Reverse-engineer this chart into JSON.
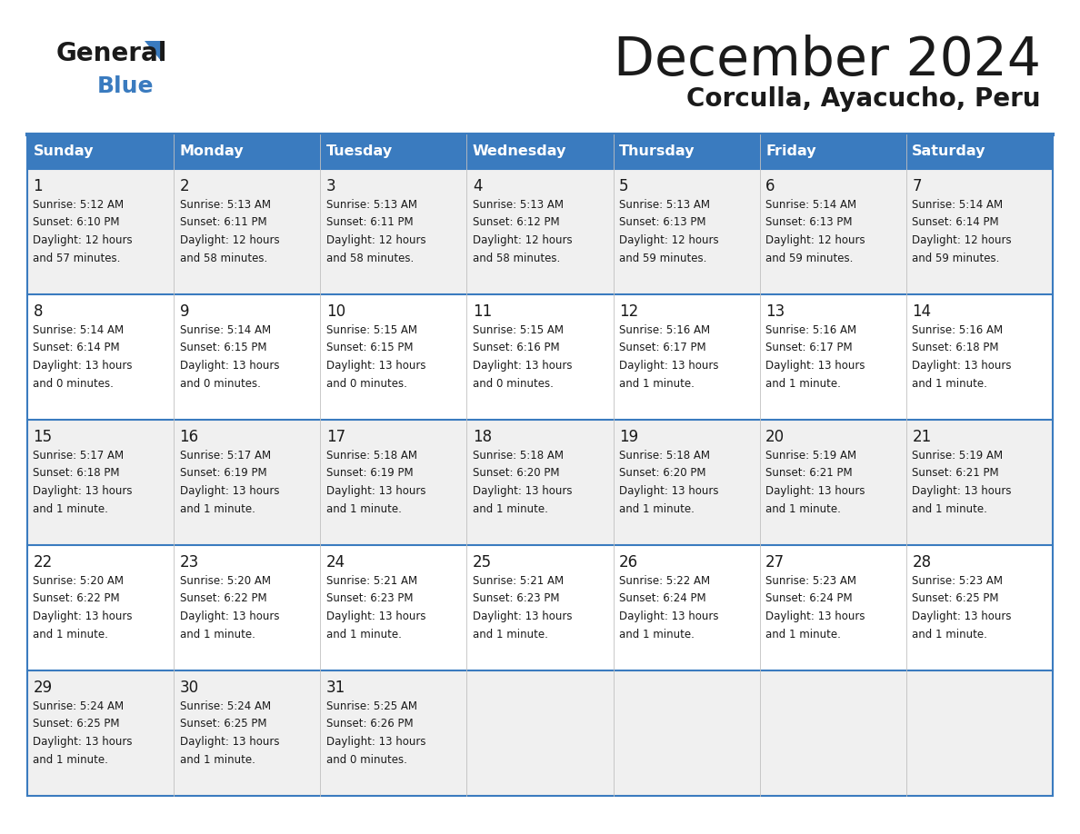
{
  "title": "December 2024",
  "subtitle": "Corculla, Ayacucho, Peru",
  "header_color": "#3a7bbf",
  "header_text_color": "#ffffff",
  "border_color": "#3a7bbf",
  "row_bg_even": "#f0f0f0",
  "row_bg_odd": "#ffffff",
  "text_color": "#1a1a1a",
  "logo_text_color": "#1a1a1a",
  "logo_blue_color": "#3a7bbf",
  "day_names": [
    "Sunday",
    "Monday",
    "Tuesday",
    "Wednesday",
    "Thursday",
    "Friday",
    "Saturday"
  ],
  "days": [
    {
      "day": 1,
      "col": 0,
      "row": 0,
      "sunrise": "5:12 AM",
      "sunset": "6:10 PM",
      "daylight_line1": "Daylight: 12 hours",
      "daylight_line2": "and 57 minutes."
    },
    {
      "day": 2,
      "col": 1,
      "row": 0,
      "sunrise": "5:13 AM",
      "sunset": "6:11 PM",
      "daylight_line1": "Daylight: 12 hours",
      "daylight_line2": "and 58 minutes."
    },
    {
      "day": 3,
      "col": 2,
      "row": 0,
      "sunrise": "5:13 AM",
      "sunset": "6:11 PM",
      "daylight_line1": "Daylight: 12 hours",
      "daylight_line2": "and 58 minutes."
    },
    {
      "day": 4,
      "col": 3,
      "row": 0,
      "sunrise": "5:13 AM",
      "sunset": "6:12 PM",
      "daylight_line1": "Daylight: 12 hours",
      "daylight_line2": "and 58 minutes."
    },
    {
      "day": 5,
      "col": 4,
      "row": 0,
      "sunrise": "5:13 AM",
      "sunset": "6:13 PM",
      "daylight_line1": "Daylight: 12 hours",
      "daylight_line2": "and 59 minutes."
    },
    {
      "day": 6,
      "col": 5,
      "row": 0,
      "sunrise": "5:14 AM",
      "sunset": "6:13 PM",
      "daylight_line1": "Daylight: 12 hours",
      "daylight_line2": "and 59 minutes."
    },
    {
      "day": 7,
      "col": 6,
      "row": 0,
      "sunrise": "5:14 AM",
      "sunset": "6:14 PM",
      "daylight_line1": "Daylight: 12 hours",
      "daylight_line2": "and 59 minutes."
    },
    {
      "day": 8,
      "col": 0,
      "row": 1,
      "sunrise": "5:14 AM",
      "sunset": "6:14 PM",
      "daylight_line1": "Daylight: 13 hours",
      "daylight_line2": "and 0 minutes."
    },
    {
      "day": 9,
      "col": 1,
      "row": 1,
      "sunrise": "5:14 AM",
      "sunset": "6:15 PM",
      "daylight_line1": "Daylight: 13 hours",
      "daylight_line2": "and 0 minutes."
    },
    {
      "day": 10,
      "col": 2,
      "row": 1,
      "sunrise": "5:15 AM",
      "sunset": "6:15 PM",
      "daylight_line1": "Daylight: 13 hours",
      "daylight_line2": "and 0 minutes."
    },
    {
      "day": 11,
      "col": 3,
      "row": 1,
      "sunrise": "5:15 AM",
      "sunset": "6:16 PM",
      "daylight_line1": "Daylight: 13 hours",
      "daylight_line2": "and 0 minutes."
    },
    {
      "day": 12,
      "col": 4,
      "row": 1,
      "sunrise": "5:16 AM",
      "sunset": "6:17 PM",
      "daylight_line1": "Daylight: 13 hours",
      "daylight_line2": "and 1 minute."
    },
    {
      "day": 13,
      "col": 5,
      "row": 1,
      "sunrise": "5:16 AM",
      "sunset": "6:17 PM",
      "daylight_line1": "Daylight: 13 hours",
      "daylight_line2": "and 1 minute."
    },
    {
      "day": 14,
      "col": 6,
      "row": 1,
      "sunrise": "5:16 AM",
      "sunset": "6:18 PM",
      "daylight_line1": "Daylight: 13 hours",
      "daylight_line2": "and 1 minute."
    },
    {
      "day": 15,
      "col": 0,
      "row": 2,
      "sunrise": "5:17 AM",
      "sunset": "6:18 PM",
      "daylight_line1": "Daylight: 13 hours",
      "daylight_line2": "and 1 minute."
    },
    {
      "day": 16,
      "col": 1,
      "row": 2,
      "sunrise": "5:17 AM",
      "sunset": "6:19 PM",
      "daylight_line1": "Daylight: 13 hours",
      "daylight_line2": "and 1 minute."
    },
    {
      "day": 17,
      "col": 2,
      "row": 2,
      "sunrise": "5:18 AM",
      "sunset": "6:19 PM",
      "daylight_line1": "Daylight: 13 hours",
      "daylight_line2": "and 1 minute."
    },
    {
      "day": 18,
      "col": 3,
      "row": 2,
      "sunrise": "5:18 AM",
      "sunset": "6:20 PM",
      "daylight_line1": "Daylight: 13 hours",
      "daylight_line2": "and 1 minute."
    },
    {
      "day": 19,
      "col": 4,
      "row": 2,
      "sunrise": "5:18 AM",
      "sunset": "6:20 PM",
      "daylight_line1": "Daylight: 13 hours",
      "daylight_line2": "and 1 minute."
    },
    {
      "day": 20,
      "col": 5,
      "row": 2,
      "sunrise": "5:19 AM",
      "sunset": "6:21 PM",
      "daylight_line1": "Daylight: 13 hours",
      "daylight_line2": "and 1 minute."
    },
    {
      "day": 21,
      "col": 6,
      "row": 2,
      "sunrise": "5:19 AM",
      "sunset": "6:21 PM",
      "daylight_line1": "Daylight: 13 hours",
      "daylight_line2": "and 1 minute."
    },
    {
      "day": 22,
      "col": 0,
      "row": 3,
      "sunrise": "5:20 AM",
      "sunset": "6:22 PM",
      "daylight_line1": "Daylight: 13 hours",
      "daylight_line2": "and 1 minute."
    },
    {
      "day": 23,
      "col": 1,
      "row": 3,
      "sunrise": "5:20 AM",
      "sunset": "6:22 PM",
      "daylight_line1": "Daylight: 13 hours",
      "daylight_line2": "and 1 minute."
    },
    {
      "day": 24,
      "col": 2,
      "row": 3,
      "sunrise": "5:21 AM",
      "sunset": "6:23 PM",
      "daylight_line1": "Daylight: 13 hours",
      "daylight_line2": "and 1 minute."
    },
    {
      "day": 25,
      "col": 3,
      "row": 3,
      "sunrise": "5:21 AM",
      "sunset": "6:23 PM",
      "daylight_line1": "Daylight: 13 hours",
      "daylight_line2": "and 1 minute."
    },
    {
      "day": 26,
      "col": 4,
      "row": 3,
      "sunrise": "5:22 AM",
      "sunset": "6:24 PM",
      "daylight_line1": "Daylight: 13 hours",
      "daylight_line2": "and 1 minute."
    },
    {
      "day": 27,
      "col": 5,
      "row": 3,
      "sunrise": "5:23 AM",
      "sunset": "6:24 PM",
      "daylight_line1": "Daylight: 13 hours",
      "daylight_line2": "and 1 minute."
    },
    {
      "day": 28,
      "col": 6,
      "row": 3,
      "sunrise": "5:23 AM",
      "sunset": "6:25 PM",
      "daylight_line1": "Daylight: 13 hours",
      "daylight_line2": "and 1 minute."
    },
    {
      "day": 29,
      "col": 0,
      "row": 4,
      "sunrise": "5:24 AM",
      "sunset": "6:25 PM",
      "daylight_line1": "Daylight: 13 hours",
      "daylight_line2": "and 1 minute."
    },
    {
      "day": 30,
      "col": 1,
      "row": 4,
      "sunrise": "5:24 AM",
      "sunset": "6:25 PM",
      "daylight_line1": "Daylight: 13 hours",
      "daylight_line2": "and 1 minute."
    },
    {
      "day": 31,
      "col": 2,
      "row": 4,
      "sunrise": "5:25 AM",
      "sunset": "6:26 PM",
      "daylight_line1": "Daylight: 13 hours",
      "daylight_line2": "and 0 minutes."
    }
  ]
}
